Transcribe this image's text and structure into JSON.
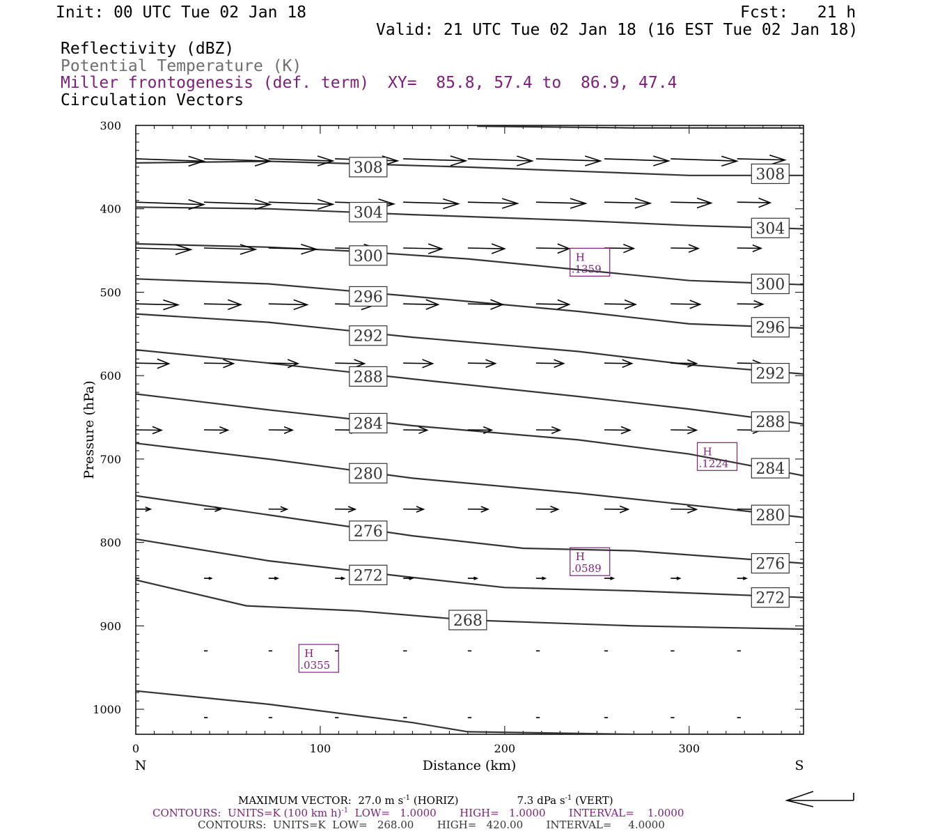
{
  "header": {
    "init": "Init: 00 UTC Tue 02 Jan 18",
    "fcst": "Fcst:   21 h",
    "valid": "Valid: 21 UTC Tue 02 Jan 18 (16 EST Tue 02 Jan 18)",
    "field1": "Reflectivity (dBZ)",
    "field2": "Potential Temperature (K)",
    "field3": "Miller frontogenesis (def. term)",
    "xy": "XY=  85.8, 57.4 to  86.9, 47.4",
    "field4": "Circulation Vectors"
  },
  "footer": {
    "max_vector": "MAXIMUM VECTOR:  27.0 m s",
    "max_vector_sup": "-1",
    "max_vector_horiz": " (HORIZ)",
    "max_vector_vert": "7.3 dPa s",
    "max_vector_vert_sup": "-1",
    "max_vector_vert_tail": " (VERT)",
    "contours1_a": "CONTOURS:  UNITS=K (100 km h)",
    "contours1_sup": "-1",
    "contours1_b": "  LOW=   1.0000       HIGH=   1.0000       INTERVAL=    1.0000",
    "contours2": "CONTOURS:  UNITS=K  LOW=   268.00       HIGH=   420.00       INTERVAL=     4.0000"
  },
  "colors": {
    "theta": "#333333",
    "fronto": "#7a1f7a",
    "axis": "#000000",
    "vector": "#000000"
  },
  "chart_data": {
    "type": "line",
    "title": "",
    "xlabel": "Distance (km)",
    "ylabel": "Pressure (hPa)",
    "xlim": [
      0,
      362
    ],
    "ylim": [
      1030,
      300
    ],
    "x_ticks": [
      0,
      100,
      200,
      300
    ],
    "y_ticks": [
      300,
      400,
      500,
      600,
      700,
      800,
      900,
      1000
    ],
    "x_end_labels": {
      "left": "N",
      "right": "S"
    },
    "y_scale": "linear (inverted)",
    "isentropes": [
      {
        "label": "308",
        "show_label": true,
        "points": [
          [
            0,
            345
          ],
          [
            72,
            343
          ],
          [
            120,
            346
          ],
          [
            180,
            350
          ],
          [
            240,
            355
          ],
          [
            300,
            360
          ],
          [
            362,
            360
          ]
        ],
        "labels": [
          [
            126,
            350
          ],
          [
            344,
            358
          ]
        ]
      },
      {
        "label": "304",
        "show_label": true,
        "points": [
          [
            0,
            398
          ],
          [
            72,
            400
          ],
          [
            150,
            407
          ],
          [
            240,
            414
          ],
          [
            300,
            420
          ],
          [
            362,
            424
          ]
        ],
        "labels": [
          [
            126,
            404
          ],
          [
            344,
            423
          ]
        ]
      },
      {
        "label": "300",
        "show_label": true,
        "points": [
          [
            0,
            442
          ],
          [
            72,
            446
          ],
          [
            120,
            451
          ],
          [
            180,
            460
          ],
          [
            240,
            473
          ],
          [
            300,
            486
          ],
          [
            362,
            491
          ]
        ],
        "labels": [
          [
            126,
            456
          ],
          [
            344,
            490
          ]
        ]
      },
      {
        "label": "296",
        "show_label": true,
        "points": [
          [
            0,
            484
          ],
          [
            72,
            490
          ],
          [
            150,
            505
          ],
          [
            240,
            523
          ],
          [
            300,
            538
          ],
          [
            362,
            543
          ]
        ],
        "labels": [
          [
            126,
            505
          ],
          [
            344,
            542
          ]
        ]
      },
      {
        "label": "292",
        "show_label": true,
        "points": [
          [
            0,
            526
          ],
          [
            72,
            536
          ],
          [
            150,
            554
          ],
          [
            240,
            571
          ],
          [
            300,
            587
          ],
          [
            362,
            598
          ]
        ],
        "labels": [
          [
            126,
            552
          ],
          [
            344,
            597
          ]
        ]
      },
      {
        "label": "288",
        "show_label": true,
        "points": [
          [
            0,
            569
          ],
          [
            72,
            585
          ],
          [
            150,
            604
          ],
          [
            240,
            625
          ],
          [
            300,
            640
          ],
          [
            362,
            658
          ]
        ],
        "labels": [
          [
            126,
            601
          ],
          [
            344,
            655
          ]
        ]
      },
      {
        "label": "284",
        "show_label": true,
        "points": [
          [
            0,
            622
          ],
          [
            72,
            641
          ],
          [
            150,
            660
          ],
          [
            240,
            677
          ],
          [
            300,
            694
          ],
          [
            362,
            720
          ]
        ],
        "labels": [
          [
            126,
            657
          ],
          [
            344,
            711
          ]
        ]
      },
      {
        "label": "280",
        "show_label": true,
        "points": [
          [
            0,
            681
          ],
          [
            72,
            700
          ],
          [
            150,
            723
          ],
          [
            240,
            741
          ],
          [
            300,
            755
          ],
          [
            362,
            770
          ]
        ],
        "labels": [
          [
            126,
            717
          ],
          [
            344,
            767
          ]
        ]
      },
      {
        "label": "276",
        "show_label": true,
        "points": [
          [
            0,
            744
          ],
          [
            72,
            767
          ],
          [
            150,
            792
          ],
          [
            210,
            807
          ],
          [
            270,
            810
          ],
          [
            362,
            825
          ]
        ],
        "labels": [
          [
            126,
            786
          ],
          [
            344,
            825
          ]
        ]
      },
      {
        "label": "272",
        "show_label": true,
        "points": [
          [
            0,
            796
          ],
          [
            72,
            822
          ],
          [
            150,
            842
          ],
          [
            200,
            854
          ],
          [
            270,
            858
          ],
          [
            362,
            866
          ]
        ],
        "labels": [
          [
            126,
            839
          ],
          [
            344,
            866
          ]
        ]
      },
      {
        "label": "268",
        "show_label": true,
        "points": [
          [
            0,
            845
          ],
          [
            60,
            876
          ],
          [
            120,
            882
          ],
          [
            180,
            893
          ],
          [
            270,
            900
          ],
          [
            362,
            904
          ]
        ],
        "labels": [
          [
            180,
            893
          ]
        ]
      },
      {
        "label": "",
        "show_label": false,
        "points": [
          [
            0,
            978
          ],
          [
            72,
            994
          ],
          [
            150,
            1016
          ],
          [
            180,
            1027
          ],
          [
            270,
            1030
          ],
          [
            362,
            1030
          ]
        ],
        "labels": []
      }
    ],
    "top_contour_partial": {
      "points": [
        [
          185,
          301
        ],
        [
          270,
          303
        ],
        [
          362,
          303
        ]
      ]
    },
    "frontogenesis_maxima": [
      {
        "label": "H",
        "value": ".1359",
        "x": 246,
        "p": 464
      },
      {
        "label": "H",
        "value": ".1224",
        "x": 315,
        "p": 697
      },
      {
        "label": "H",
        "value": ".0589",
        "x": 246,
        "p": 823
      },
      {
        "label": "H",
        "value": ".0355",
        "x": 99,
        "p": 939
      }
    ],
    "vector_rows": [
      {
        "p": 340,
        "vectors": [
          [
            0,
            37
          ],
          [
            37,
            36
          ],
          [
            72,
            35
          ],
          [
            108,
            34
          ],
          [
            145,
            34
          ],
          [
            180,
            35
          ],
          [
            217,
            35
          ],
          [
            254,
            35
          ],
          [
            290,
            36
          ],
          [
            326,
            26
          ]
        ]
      },
      {
        "p": 392,
        "vectors": [
          [
            0,
            37
          ],
          [
            37,
            36
          ],
          [
            72,
            35
          ],
          [
            108,
            32
          ],
          [
            145,
            30
          ],
          [
            180,
            27
          ],
          [
            217,
            27
          ],
          [
            254,
            25
          ],
          [
            290,
            22
          ],
          [
            326,
            18
          ]
        ]
      },
      {
        "p": 447,
        "vectors": [
          [
            0,
            30
          ],
          [
            37,
            28
          ],
          [
            72,
            26
          ],
          [
            108,
            24
          ],
          [
            145,
            21
          ],
          [
            180,
            20
          ],
          [
            217,
            18
          ],
          [
            254,
            16
          ],
          [
            290,
            15
          ],
          [
            326,
            13
          ]
        ]
      },
      {
        "p": 514,
        "vectors": [
          [
            0,
            23
          ],
          [
            37,
            20
          ],
          [
            72,
            21
          ],
          [
            108,
            22
          ],
          [
            145,
            19
          ],
          [
            180,
            19
          ],
          [
            217,
            18
          ],
          [
            254,
            17
          ],
          [
            290,
            16
          ],
          [
            326,
            14
          ]
        ]
      },
      {
        "p": 585,
        "vectors": [
          [
            0,
            18
          ],
          [
            37,
            16
          ],
          [
            72,
            16
          ],
          [
            108,
            16
          ],
          [
            145,
            16
          ],
          [
            180,
            15
          ],
          [
            217,
            15
          ],
          [
            254,
            15
          ],
          [
            290,
            14
          ],
          [
            326,
            13
          ]
        ]
      },
      {
        "p": 665,
        "vectors": [
          [
            0,
            14
          ],
          [
            37,
            13
          ],
          [
            72,
            13
          ],
          [
            108,
            13
          ],
          [
            145,
            13
          ],
          [
            180,
            13
          ],
          [
            217,
            13
          ],
          [
            254,
            14
          ],
          [
            290,
            14
          ],
          [
            326,
            13
          ]
        ]
      },
      {
        "p": 760,
        "vectors": [
          [
            0,
            8
          ],
          [
            37,
            9
          ],
          [
            72,
            10
          ],
          [
            108,
            11
          ],
          [
            145,
            11
          ],
          [
            180,
            11
          ],
          [
            217,
            12
          ],
          [
            254,
            13
          ],
          [
            290,
            14
          ],
          [
            326,
            13
          ]
        ]
      },
      {
        "p": 843,
        "vectors": [
          [
            0,
            2
          ],
          [
            37,
            4
          ],
          [
            72,
            5
          ],
          [
            108,
            5
          ],
          [
            145,
            5
          ],
          [
            180,
            5
          ],
          [
            217,
            5
          ],
          [
            254,
            5
          ],
          [
            290,
            5
          ],
          [
            326,
            5
          ]
        ]
      },
      {
        "p": 930,
        "vectors": [
          [
            37,
            2
          ],
          [
            72,
            2
          ],
          [
            108,
            2
          ],
          [
            145,
            2
          ],
          [
            180,
            2
          ],
          [
            217,
            2
          ],
          [
            254,
            2
          ],
          [
            290,
            2
          ],
          [
            326,
            2
          ]
        ]
      },
      {
        "p": 1010,
        "vectors": [
          [
            37,
            2
          ],
          [
            72,
            2
          ],
          [
            108,
            2
          ],
          [
            145,
            2
          ],
          [
            180,
            2
          ],
          [
            217,
            2
          ],
          [
            254,
            2
          ],
          [
            290,
            2
          ],
          [
            326,
            2
          ]
        ]
      }
    ]
  }
}
